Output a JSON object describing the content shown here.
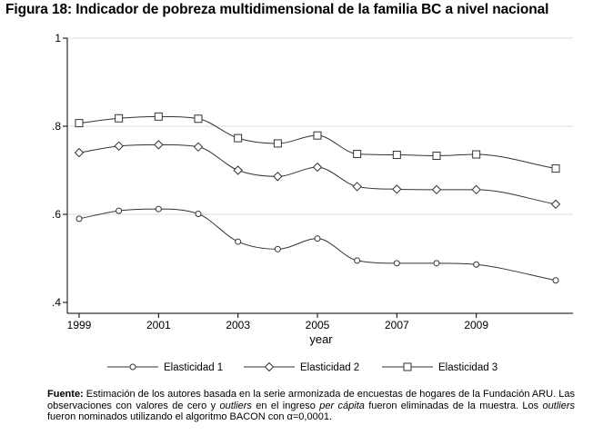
{
  "figure": {
    "title": "Figura  18: Indicador de pobreza multidimensional de la familia BC a nivel nacional"
  },
  "chart_data": {
    "type": "line",
    "title": "Figura  18: Indicador de pobreza multidimensional de la familia BC a nivel nacional",
    "xlabel": "year",
    "ylabel": "",
    "x": [
      1999,
      2000,
      2001,
      2002,
      2003,
      2004,
      2005,
      2006,
      2007,
      2008,
      2009,
      2011
    ],
    "xlim": [
      1999,
      2011
    ],
    "ylim": [
      0.4,
      1.0
    ],
    "x_ticks": [
      1999,
      2001,
      2003,
      2005,
      2007,
      2009
    ],
    "x_tick_labels": [
      "1999",
      "2001",
      "2003",
      "2005",
      "2007",
      "2009"
    ],
    "y_ticks": [
      0.4,
      0.6,
      0.8,
      1.0
    ],
    "y_tick_labels": [
      ".4",
      ".6",
      ".8",
      "1"
    ],
    "grid": true,
    "legend_position": "bottom",
    "series": [
      {
        "name": "Elasticidad 1",
        "marker": "circle",
        "values": [
          0.59,
          0.608,
          0.612,
          0.601,
          0.538,
          0.521,
          0.545,
          0.495,
          0.489,
          0.489,
          0.486,
          0.45
        ]
      },
      {
        "name": "Elasticidad 2",
        "marker": "diamond",
        "values": [
          0.74,
          0.755,
          0.758,
          0.753,
          0.7,
          0.686,
          0.707,
          0.663,
          0.657,
          0.656,
          0.656,
          0.623
        ]
      },
      {
        "name": "Elasticidad 3",
        "marker": "square",
        "values": [
          0.807,
          0.818,
          0.822,
          0.817,
          0.773,
          0.761,
          0.779,
          0.737,
          0.735,
          0.733,
          0.736,
          0.704
        ]
      }
    ]
  },
  "note": {
    "label": "Fuente:",
    "text_1": " Estimación de los autores basada en la serie armonizada de encuestas de hogares de la Fundación ARU. Las observaciones con valores de cero y ",
    "italic_1": "outliers",
    "text_2": " en el ingreso ",
    "italic_2": "per cápita",
    "text_3": " fueron eliminadas de la muestra. Los ",
    "italic_3": "outliers",
    "text_4": " fueron nominados utilizando el algoritmo BACON con α=0,0001."
  },
  "colors": {
    "line": "#333333",
    "grid": "#dddddd",
    "axis": "#000000"
  }
}
